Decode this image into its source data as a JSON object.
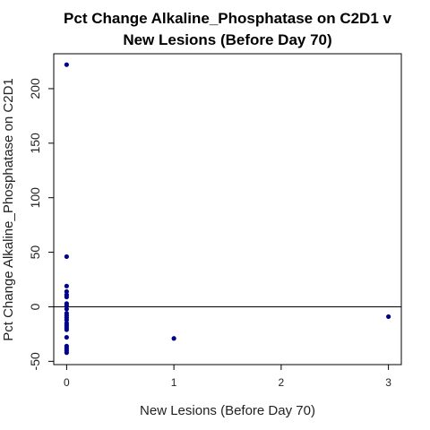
{
  "chart_data": {
    "type": "scatter",
    "title_line1": "Pct Change Alkaline_Phosphatase on C2D1 v",
    "title_line2": "New Lesions (Before Day 70)",
    "xlabel": "New Lesions (Before Day 70)",
    "ylabel": "Pct Change Alkaline_Phosphatase on C2D1",
    "xlim": [
      -0.12,
      3.12
    ],
    "ylim": [
      -53,
      232
    ],
    "xticks": [
      0,
      1,
      2,
      3
    ],
    "xtick_labels": [
      "0",
      "1",
      "2",
      "3"
    ],
    "yticks": [
      -50,
      0,
      50,
      100,
      150,
      200
    ],
    "ytick_labels": [
      "-50",
      "0",
      "50",
      "100",
      "150",
      "200"
    ],
    "reference_line_y": 0,
    "grid": false,
    "point_color": "#00008B",
    "points": [
      {
        "x": 0,
        "y": 222
      },
      {
        "x": 0,
        "y": 46
      },
      {
        "x": 0,
        "y": 19
      },
      {
        "x": 0,
        "y": 14
      },
      {
        "x": 0,
        "y": 11
      },
      {
        "x": 0,
        "y": 9
      },
      {
        "x": 0,
        "y": 3
      },
      {
        "x": 0,
        "y": 1
      },
      {
        "x": 0,
        "y": -2
      },
      {
        "x": 0,
        "y": -6
      },
      {
        "x": 0,
        "y": -8
      },
      {
        "x": 0,
        "y": -10
      },
      {
        "x": 0,
        "y": -12
      },
      {
        "x": 0,
        "y": -15
      },
      {
        "x": 0,
        "y": -17
      },
      {
        "x": 0,
        "y": -19
      },
      {
        "x": 0,
        "y": -21
      },
      {
        "x": 0,
        "y": -28
      },
      {
        "x": 0,
        "y": -36
      },
      {
        "x": 0,
        "y": -38
      },
      {
        "x": 0,
        "y": -40
      },
      {
        "x": 0,
        "y": -42
      },
      {
        "x": 1,
        "y": -29
      },
      {
        "x": 3,
        "y": -9
      }
    ]
  }
}
